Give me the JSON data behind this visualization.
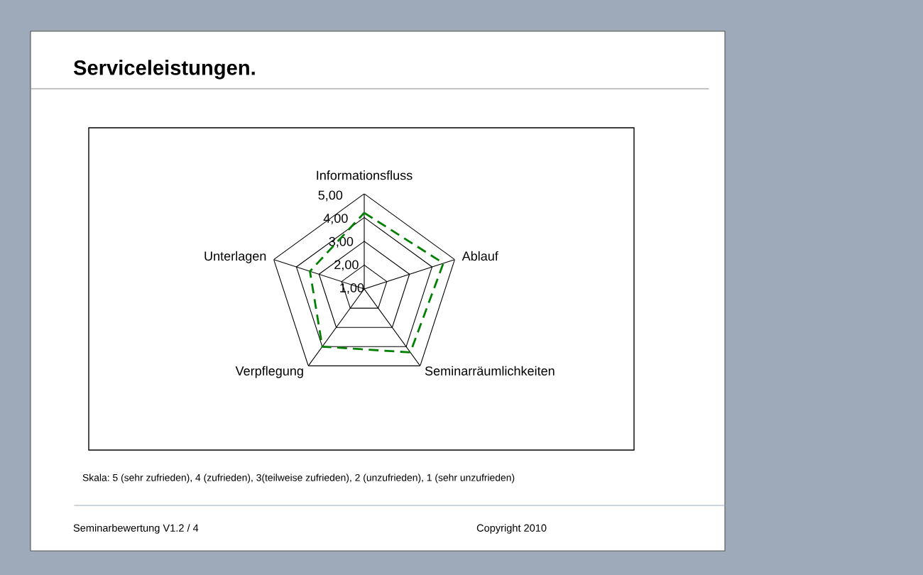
{
  "chart_data": {
    "type": "radar",
    "title": "Serviceleistungen.",
    "categories": [
      "Informationsfluss",
      "Ablauf",
      "Seminarräumlichkeiten",
      "Verpflegung",
      "Unterlagen"
    ],
    "series": [
      {
        "color": "#008000",
        "values": [
          4.2,
          4.5,
          4.3,
          4.0,
          3.4
        ]
      }
    ],
    "ylim": [
      1,
      5
    ],
    "yticks": [
      {
        "value": 1,
        "label": "1,00"
      },
      {
        "value": 2,
        "label": "2,00"
      },
      {
        "value": 3,
        "label": "3,00"
      },
      {
        "value": 4,
        "label": "4,00"
      },
      {
        "value": 5,
        "label": "5,00"
      }
    ],
    "grid": true,
    "line_style": "dashed",
    "marker": "none",
    "annotations": [
      "Skala: 5 (sehr zufrieden), 4 (zufrieden), 3(teilweise zufrieden), 2 (unzufrieden), 1 (sehr unzufrieden)",
      "Seminarbewertung V1.2 / 4",
      "Copyright 2010"
    ]
  }
}
